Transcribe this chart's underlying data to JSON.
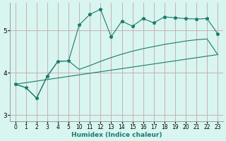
{
  "bg_color": "#d8f5f0",
  "line_color": "#1a7a6e",
  "grid_color": "#c8b0b0",
  "xlabel": "Humidex (Indice chaleur)",
  "xlim": [
    -0.5,
    19.5
  ],
  "ylim": [
    2.85,
    5.65
  ],
  "yticks": [
    3,
    4,
    5
  ],
  "xtick_positions": [
    0,
    1,
    2,
    3,
    4,
    5,
    6,
    7,
    8,
    9,
    10,
    11,
    12,
    13,
    14,
    15,
    16,
    17,
    18,
    19
  ],
  "xtick_labels": [
    "0",
    "1",
    "2",
    "3",
    "4",
    "5",
    "10",
    "11",
    "12",
    "13",
    "14",
    "15",
    "16",
    "17",
    "18",
    "19",
    "20",
    "21",
    "22",
    "23"
  ],
  "series1_y": [
    3.73,
    3.65,
    3.4,
    3.92,
    4.27,
    4.28,
    5.13,
    5.38,
    5.5,
    4.85,
    5.22,
    5.1,
    5.28,
    5.18,
    5.32,
    5.3,
    5.28,
    5.27,
    5.28,
    4.92
  ],
  "series2_y": [
    3.73,
    3.65,
    3.4,
    3.92,
    4.27,
    4.28,
    4.08,
    4.17,
    4.27,
    4.36,
    4.44,
    4.51,
    4.57,
    4.62,
    4.67,
    4.71,
    4.75,
    4.78,
    4.8,
    4.43
  ],
  "series3_y_start": 3.73,
  "series3_y_end": 4.43
}
